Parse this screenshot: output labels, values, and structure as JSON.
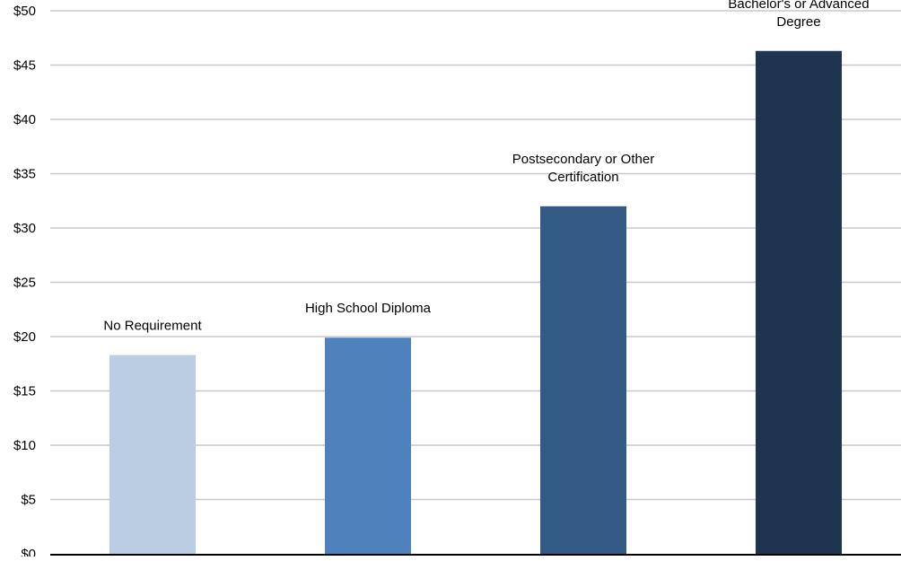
{
  "chart_data": {
    "type": "bar",
    "title": "",
    "xlabel": "",
    "ylabel": "",
    "ylim": [
      0,
      50
    ],
    "y_ticks": [
      0,
      5,
      10,
      15,
      20,
      25,
      30,
      35,
      40,
      45,
      50
    ],
    "y_tick_labels": [
      "$0",
      "$5",
      "$10",
      "$15",
      "$20",
      "$25",
      "$30",
      "$35",
      "$40",
      "$45",
      "$50"
    ],
    "grid": true,
    "legend": "none",
    "categories": [
      [
        "No Requirement"
      ],
      [
        "High School Diploma"
      ],
      [
        "Postsecondary or Other",
        "Certification"
      ],
      [
        "Bachelor's or Advanced",
        "Degree"
      ]
    ],
    "values": [
      18.3,
      19.9,
      32.0,
      46.3
    ],
    "colors": [
      "#bacde3",
      "#4f81bd",
      "#345a86",
      "#1f344f"
    ],
    "gridline_color": "#c8c8c8",
    "axis_color": "#000000"
  }
}
